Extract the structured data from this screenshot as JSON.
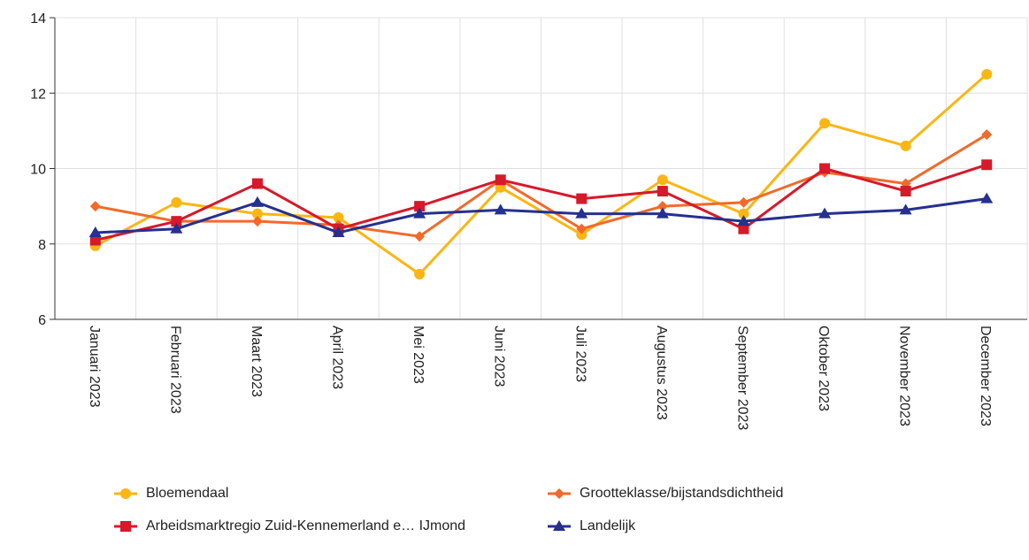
{
  "chart_data": {
    "type": "line",
    "categories": [
      "Januari 2023",
      "Februari 2023",
      "Maart 2023",
      "April 2023",
      "Mei 2023",
      "Juni 2023",
      "Juli 2023",
      "Augustus 2023",
      "September 2023",
      "Oktober 2023",
      "November 2023",
      "December 2023"
    ],
    "series": [
      {
        "name": "Bloemendaal",
        "color": "#fbb614",
        "marker": "circle",
        "values": [
          7.95,
          9.1,
          8.8,
          8.7,
          7.2,
          9.5,
          8.25,
          9.7,
          8.8,
          11.2,
          10.6,
          12.5
        ]
      },
      {
        "name": "Grootteklasse/bijstandsdichtheid",
        "color": "#f26a2a",
        "marker": "diamond",
        "values": [
          9.0,
          8.6,
          8.6,
          8.5,
          8.2,
          9.7,
          8.4,
          9.0,
          9.1,
          9.9,
          9.6,
          10.9
        ]
      },
      {
        "name": "Arbeidsmarktregio Zuid-Kennemerland e… IJmond",
        "color": "#d7192a",
        "marker": "square",
        "values": [
          8.1,
          8.6,
          9.6,
          8.4,
          9.0,
          9.7,
          9.2,
          9.4,
          8.4,
          10.0,
          9.4,
          10.1
        ]
      },
      {
        "name": "Landelijk",
        "color": "#25308f",
        "marker": "triangle",
        "values": [
          8.3,
          8.4,
          9.1,
          8.3,
          8.8,
          8.9,
          8.8,
          8.8,
          8.6,
          8.8,
          8.9,
          9.2
        ]
      }
    ],
    "ylim": [
      6,
      14
    ],
    "yticks": [
      6,
      8,
      10,
      12,
      14
    ],
    "grid": true
  }
}
